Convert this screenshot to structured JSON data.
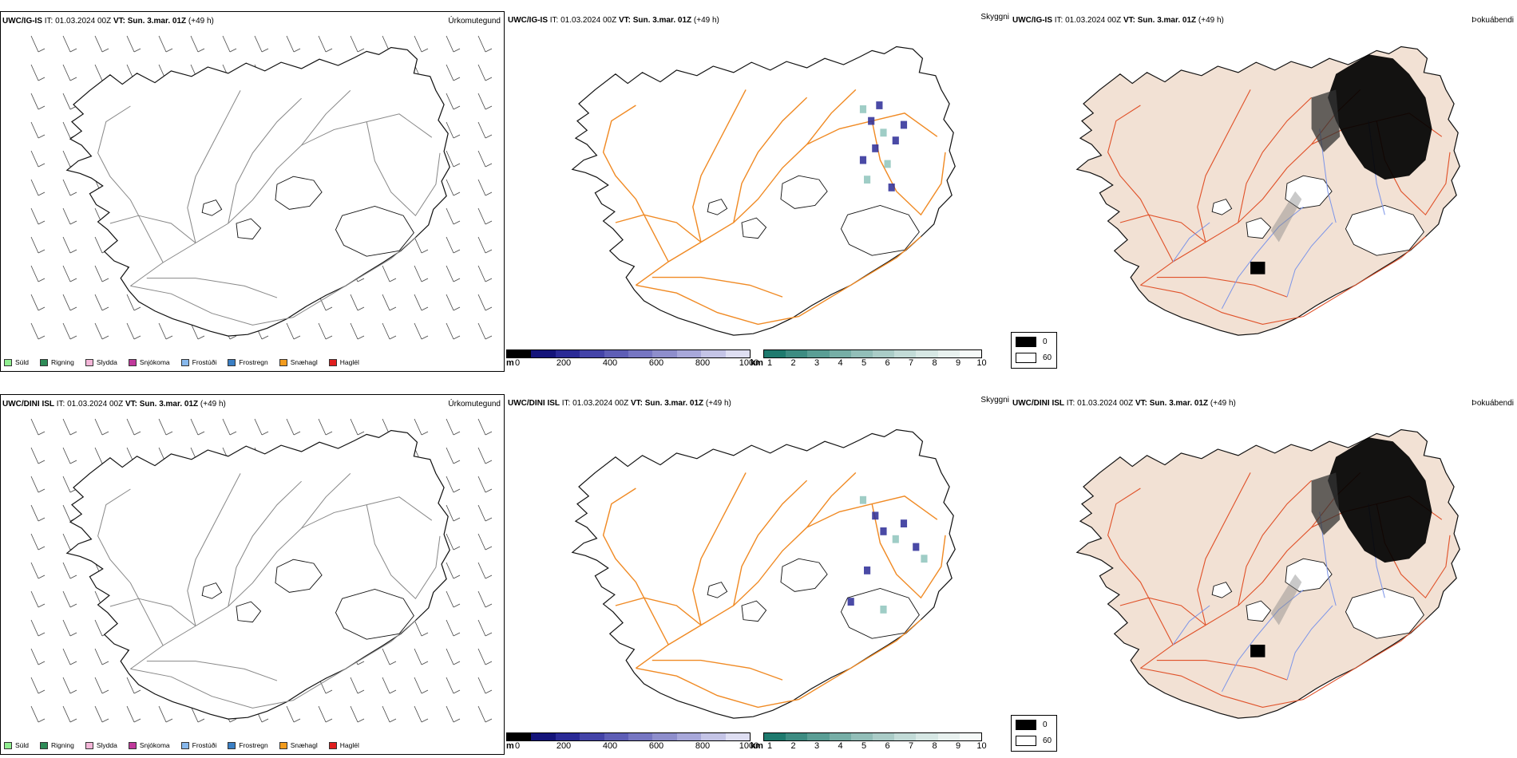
{
  "rows": [
    {
      "model": "UWC/IG-IS",
      "it_label": "IT:",
      "it_value": "01.03.2024 00Z",
      "vt_label": "VT:",
      "vt_value": "Sun. 3.mar. 01Z",
      "lead": "(+49 h)",
      "panel_titles": [
        "Úrkomutegund",
        "Skyggni",
        "Þokuábendi"
      ]
    },
    {
      "model": "UWC/DINI ISL",
      "it_label": "IT:",
      "it_value": "01.03.2024 00Z",
      "vt_label": "VT:",
      "vt_value": "Sun. 3.mar. 01Z",
      "lead": "(+49 h)",
      "panel_titles": [
        "Úrkomutegund",
        "Skyggni",
        "Þokuábendi"
      ]
    }
  ],
  "precip_legend": [
    {
      "label": "Súld",
      "color": "#90ee90"
    },
    {
      "label": "Rigning",
      "color": "#2e8b57"
    },
    {
      "label": "Slydda",
      "color": "#f4b6d8"
    },
    {
      "label": "Snjókoma",
      "color": "#c0399b"
    },
    {
      "label": "Frostúði",
      "color": "#87b8ec"
    },
    {
      "label": "Frostregn",
      "color": "#3a7fc4"
    },
    {
      "label": "Snæhagl",
      "color": "#f39c1e"
    },
    {
      "label": "Haglél",
      "color": "#e01f1f"
    }
  ],
  "visibility_scale": {
    "unit_m": "m",
    "m_ticks": [
      "0",
      "200",
      "400",
      "600",
      "800",
      "1000"
    ],
    "unit_km": "km",
    "km_ticks": [
      "1",
      "2",
      "3",
      "4",
      "5",
      "6",
      "7",
      "8",
      "9",
      "10"
    ],
    "m_colors": [
      "#000000",
      "#14147a",
      "#2a2a96",
      "#4444a8",
      "#5e5eb6",
      "#7676c2",
      "#8e8ecc",
      "#a8a8da",
      "#c4c4e6",
      "#dedef2"
    ],
    "km_colors": [
      "#1e7a6e",
      "#3d8c82",
      "#5a9e95",
      "#76aea6",
      "#92beb8",
      "#aaccc7",
      "#c2dbd7",
      "#d6e7e4",
      "#e8f1ef",
      "#f6faf9"
    ]
  },
  "fog_legend": {
    "high": "0",
    "low": "60",
    "high_color": "#000000",
    "low_color": "#ffffff"
  },
  "colors": {
    "land_fill": "#f2e1d4",
    "road_orange": "#f08a24",
    "road_red": "#e0522a",
    "river_blue": "#7d95e8",
    "coast": "#111111"
  }
}
